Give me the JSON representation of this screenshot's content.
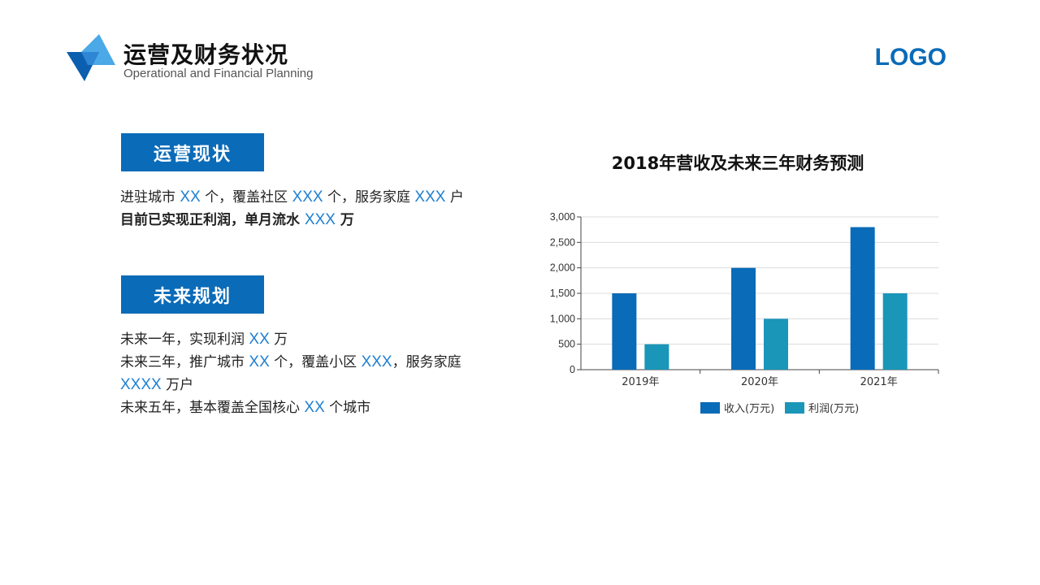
{
  "header": {
    "title": "运营及财务状况",
    "subtitle": "Operational and Financial Planning",
    "logo_text": "LOGO"
  },
  "colors": {
    "primary": "#0a6bb8",
    "highlight": "#1f7fd2",
    "teal": "#1a96b8",
    "logo_light": "#4aa9e6",
    "logo_dark": "#0b5fae"
  },
  "sections": {
    "current": {
      "header": "运营现状",
      "lines": [
        [
          {
            "t": "进驻城市 ",
            "h": false
          },
          {
            "t": "XX",
            "h": true
          },
          {
            "t": " 个，覆盖社区 ",
            "h": false
          },
          {
            "t": "XXX",
            "h": true
          },
          {
            "t": " 个，服务家庭 ",
            "h": false
          },
          {
            "t": "XXX",
            "h": true
          },
          {
            "t": " 户",
            "h": false
          }
        ],
        [
          {
            "t": "目前已实现正利润，单月流水 ",
            "h": false
          },
          {
            "t": "XXX",
            "h": true
          },
          {
            "t": " 万",
            "h": false
          }
        ]
      ]
    },
    "future": {
      "header": "未来规划",
      "lines": [
        [
          {
            "t": "未来一年，实现利润 ",
            "h": false
          },
          {
            "t": "XX",
            "h": true
          },
          {
            "t": " 万",
            "h": false
          }
        ],
        [
          {
            "t": "未来三年，推广城市 ",
            "h": false
          },
          {
            "t": "XX",
            "h": true
          },
          {
            "t": " 个，覆盖小区 ",
            "h": false
          },
          {
            "t": "XXX",
            "h": true
          },
          {
            "t": "，服务家庭",
            "h": false
          }
        ],
        [
          {
            "t": "XXXX",
            "h": true
          },
          {
            "t": " 万户",
            "h": false
          }
        ],
        [
          {
            "t": "未来五年，基本覆盖全国核心 ",
            "h": false
          },
          {
            "t": "XX",
            "h": true
          },
          {
            "t": " 个城市",
            "h": false
          }
        ]
      ]
    }
  },
  "chart_data": {
    "type": "bar",
    "title": "2018年营收及未来三年财务预测",
    "categories": [
      "2019年",
      "2020年",
      "2021年"
    ],
    "series": [
      {
        "name": "收入(万元)",
        "values": [
          1500,
          2000,
          2800
        ],
        "color": "#0a6bb8"
      },
      {
        "name": "利润(万元)",
        "values": [
          500,
          1000,
          1500
        ],
        "color": "#1a96b8"
      }
    ],
    "ylim": [
      0,
      3000
    ],
    "yticks": [
      0,
      500,
      1000,
      1500,
      2000,
      2500,
      3000
    ],
    "ytick_labels": [
      "0",
      "500",
      "1,000",
      "1,500",
      "2,000",
      "2,500",
      "3,000"
    ],
    "grid": true,
    "legend_position": "bottom"
  }
}
